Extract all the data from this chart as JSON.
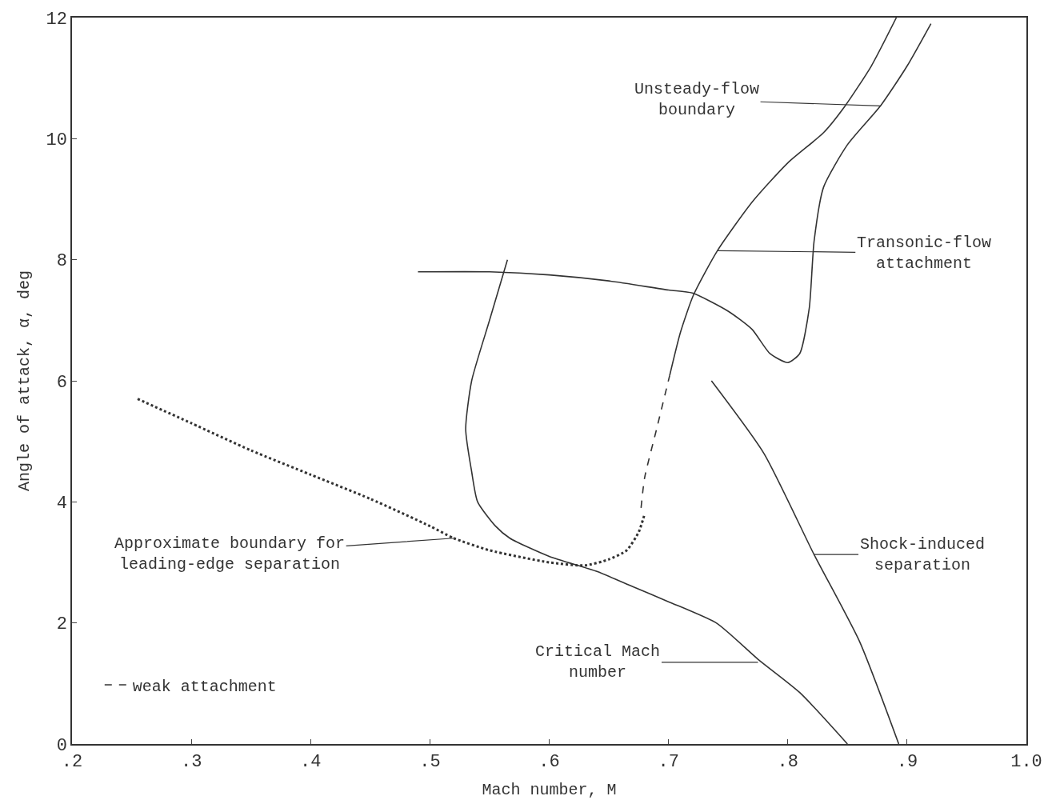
{
  "chart_data": {
    "type": "line",
    "xlabel": "Mach number, M",
    "ylabel": "Angle of attack, α, deg",
    "xlim": [
      0.2,
      1.0
    ],
    "xticks": [
      {
        "value": 0.2,
        "label": ".2"
      },
      {
        "value": 0.3,
        "label": ".3"
      },
      {
        "value": 0.4,
        "label": ".4"
      },
      {
        "value": 0.5,
        "label": ".5"
      },
      {
        "value": 0.6,
        "label": ".6"
      },
      {
        "value": 0.7,
        "label": ".7"
      },
      {
        "value": 0.8,
        "label": ".8"
      },
      {
        "value": 0.9,
        "label": ".9"
      },
      {
        "value": 1.0,
        "label": "1.0"
      }
    ],
    "ylim": [
      0,
      12
    ],
    "yticks": [
      0,
      2,
      4,
      6,
      8,
      10,
      12
    ],
    "legend": "bottom left",
    "marker": "none",
    "series": [
      {
        "color": "#333333",
        "line_style": "solid",
        "x": [
          0.49,
          0.55,
          0.6,
          0.65,
          0.7,
          0.72,
          0.75,
          0.77,
          0.785,
          0.8,
          0.81,
          0.818,
          0.822,
          0.83,
          0.85,
          0.878,
          0.9,
          0.92
        ],
        "values": [
          7.8,
          7.8,
          7.75,
          7.65,
          7.5,
          7.45,
          7.15,
          6.85,
          6.45,
          6.3,
          6.45,
          7.2,
          8.3,
          9.2,
          9.9,
          10.55,
          11.2,
          11.9
        ]
      },
      {
        "color": "#333333",
        "line_style": "solid",
        "x": [
          0.701,
          0.71,
          0.721,
          0.741,
          0.77,
          0.8,
          0.83,
          0.848,
          0.87,
          0.891
        ],
        "values": [
          6.09,
          6.8,
          7.42,
          8.15,
          8.95,
          9.6,
          10.1,
          10.54,
          11.2,
          12.0
        ]
      },
      {
        "name": "weak attachment",
        "color": "#333333",
        "line_style": "dashed",
        "x": [
          0.677,
          0.68,
          0.69,
          0.701
        ],
        "values": [
          3.9,
          4.4,
          5.2,
          6.09
        ]
      },
      {
        "color": "#333333",
        "line_style": "solid",
        "x": [
          0.565,
          0.55,
          0.535,
          0.53,
          0.535,
          0.54,
          0.555,
          0.567,
          0.6,
          0.64,
          0.67,
          0.7,
          0.74,
          0.775,
          0.81,
          0.85
        ],
        "values": [
          8.0,
          7.0,
          6.0,
          5.2,
          4.5,
          4.0,
          3.6,
          3.4,
          3.1,
          2.85,
          2.6,
          2.35,
          2.0,
          1.4,
          0.85,
          0.0
        ]
      },
      {
        "color": "#333333",
        "line_style": "solid",
        "x": [
          0.736,
          0.78,
          0.822,
          0.86,
          0.893
        ],
        "values": [
          6.0,
          4.8,
          3.13,
          1.7,
          0.0
        ]
      },
      {
        "color": "#333333",
        "line_style": "dotted",
        "x": [
          0.255,
          0.3,
          0.35,
          0.4,
          0.45,
          0.5,
          0.52,
          0.55,
          0.6,
          0.63,
          0.65,
          0.665,
          0.675,
          0.68
        ],
        "values": [
          5.7,
          5.3,
          4.85,
          4.45,
          4.05,
          3.6,
          3.4,
          3.2,
          3.0,
          2.95,
          3.05,
          3.2,
          3.5,
          3.8
        ]
      }
    ],
    "annotations": [
      {
        "text": "Unsteady-flow\nboundary",
        "x": 0.878,
        "y": 10.54
      },
      {
        "text": "Transonic-flow\nattachment",
        "x": 0.741,
        "y": 8.15
      },
      {
        "text": "Shock-induced\nseparation",
        "x": 0.822,
        "y": 3.13
      },
      {
        "text": "Critical Mach\nnumber",
        "x": 0.775,
        "y": 1.35
      },
      {
        "text": "Approximate boundary for\nleading-edge separation",
        "x": 0.52,
        "y": 3.4
      }
    ]
  }
}
